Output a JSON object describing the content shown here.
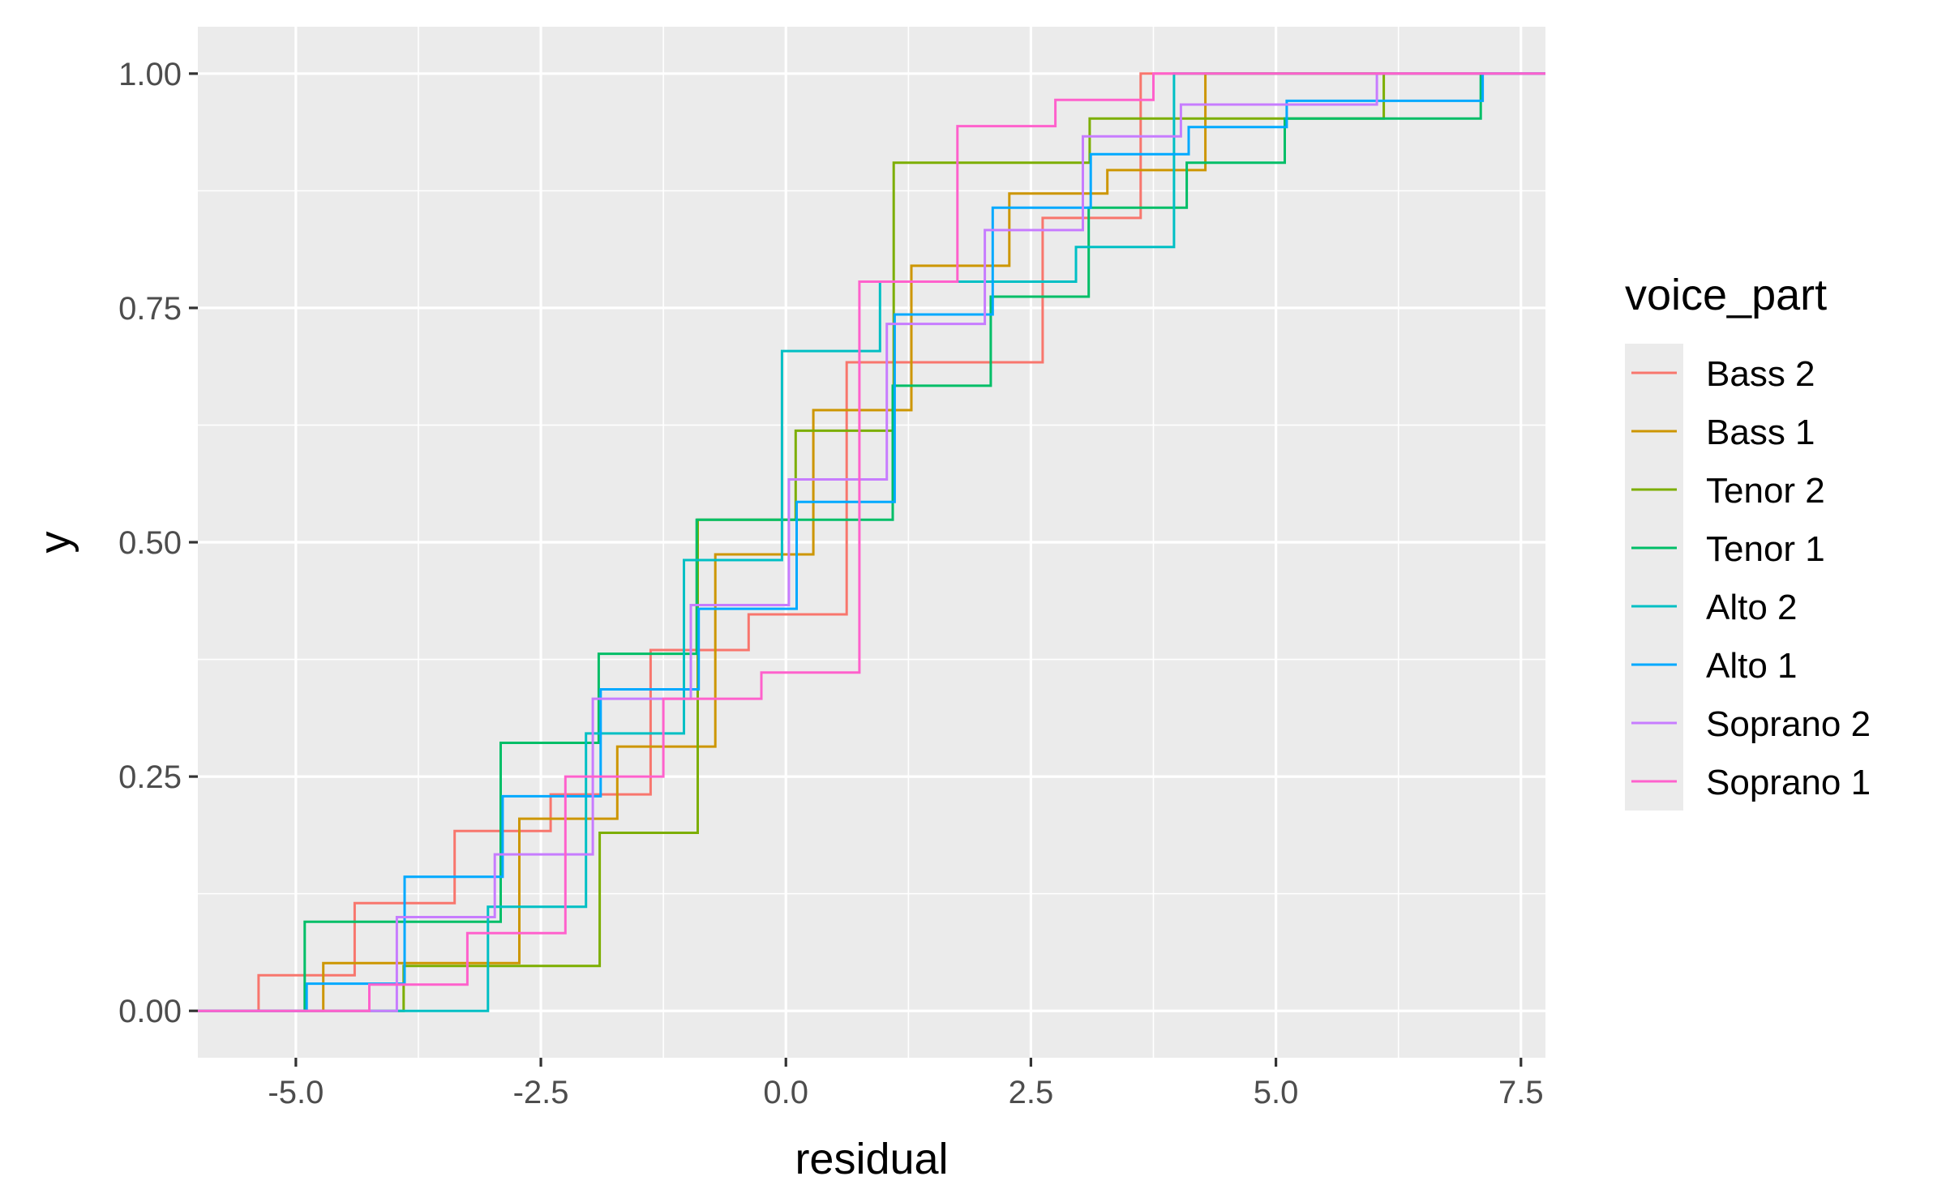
{
  "chart_data": {
    "type": "line",
    "subtype": "step-ecdf",
    "title": "",
    "xlabel": "residual",
    "ylabel": "y",
    "xlim": [
      -6.0,
      7.75
    ],
    "ylim": [
      -0.05,
      1.05
    ],
    "x_ticks": [
      -5.0,
      -2.5,
      0.0,
      2.5,
      5.0,
      7.5
    ],
    "x_tick_labels": [
      "-5.0",
      "-2.5",
      "0.0",
      "2.5",
      "5.0",
      "7.5"
    ],
    "y_ticks": [
      0.0,
      0.25,
      0.5,
      0.75,
      1.0
    ],
    "y_tick_labels": [
      "0.00",
      "0.25",
      "0.50",
      "0.75",
      "1.00"
    ],
    "grid": true,
    "panel_background": "#ebebeb",
    "legend": {
      "title": "voice_part",
      "position": "right"
    },
    "series": [
      {
        "name": "Bass 2",
        "color": "#F8766D",
        "points": [
          [
            -5.38,
            0.0
          ],
          [
            -5.38,
            0.038
          ],
          [
            -4.4,
            0.038
          ],
          [
            -4.4,
            0.115
          ],
          [
            -3.38,
            0.115
          ],
          [
            -3.38,
            0.192
          ],
          [
            -2.4,
            0.192
          ],
          [
            -2.4,
            0.231
          ],
          [
            -1.38,
            0.231
          ],
          [
            -1.38,
            0.385
          ],
          [
            -0.38,
            0.385
          ],
          [
            -0.38,
            0.423
          ],
          [
            0.62,
            0.423
          ],
          [
            0.62,
            0.692
          ],
          [
            2.62,
            0.692
          ],
          [
            2.62,
            0.846
          ],
          [
            3.62,
            0.846
          ],
          [
            3.62,
            1.0
          ]
        ]
      },
      {
        "name": "Bass 1",
        "color": "#CD9600",
        "points": [
          [
            -4.72,
            0.0
          ],
          [
            -4.72,
            0.051
          ],
          [
            -2.72,
            0.051
          ],
          [
            -2.72,
            0.205
          ],
          [
            -1.72,
            0.205
          ],
          [
            -1.72,
            0.282
          ],
          [
            -0.72,
            0.282
          ],
          [
            -0.72,
            0.487
          ],
          [
            0.28,
            0.487
          ],
          [
            0.28,
            0.641
          ],
          [
            1.28,
            0.641
          ],
          [
            1.28,
            0.795
          ],
          [
            2.28,
            0.795
          ],
          [
            2.28,
            0.872
          ],
          [
            3.28,
            0.872
          ],
          [
            3.28,
            0.897
          ],
          [
            4.28,
            0.897
          ],
          [
            4.28,
            1.0
          ]
        ]
      },
      {
        "name": "Tenor 2",
        "color": "#7CAE00",
        "points": [
          [
            -3.9,
            0.0
          ],
          [
            -3.9,
            0.048
          ],
          [
            -1.9,
            0.048
          ],
          [
            -1.9,
            0.19
          ],
          [
            -0.9,
            0.19
          ],
          [
            -0.9,
            0.524
          ],
          [
            0.1,
            0.524
          ],
          [
            0.1,
            0.619
          ],
          [
            1.1,
            0.619
          ],
          [
            1.1,
            0.905
          ],
          [
            3.1,
            0.905
          ],
          [
            3.1,
            0.952
          ],
          [
            6.1,
            0.952
          ],
          [
            6.1,
            1.0
          ]
        ]
      },
      {
        "name": "Tenor 1",
        "color": "#00BE67",
        "points": [
          [
            -4.91,
            0.0
          ],
          [
            -4.91,
            0.095
          ],
          [
            -2.91,
            0.095
          ],
          [
            -2.91,
            0.286
          ],
          [
            -1.91,
            0.286
          ],
          [
            -1.91,
            0.381
          ],
          [
            -0.91,
            0.381
          ],
          [
            -0.91,
            0.524
          ],
          [
            1.09,
            0.524
          ],
          [
            1.09,
            0.667
          ],
          [
            2.09,
            0.667
          ],
          [
            2.09,
            0.762
          ],
          [
            3.09,
            0.762
          ],
          [
            3.09,
            0.857
          ],
          [
            4.09,
            0.857
          ],
          [
            4.09,
            0.905
          ],
          [
            5.09,
            0.905
          ],
          [
            5.09,
            0.952
          ],
          [
            7.09,
            0.952
          ],
          [
            7.09,
            1.0
          ]
        ]
      },
      {
        "name": "Alto 2",
        "color": "#00BFC4",
        "points": [
          [
            -3.04,
            0.0
          ],
          [
            -3.04,
            0.111
          ],
          [
            -2.04,
            0.111
          ],
          [
            -2.04,
            0.296
          ],
          [
            -1.04,
            0.296
          ],
          [
            -1.04,
            0.481
          ],
          [
            -0.04,
            0.481
          ],
          [
            -0.04,
            0.704
          ],
          [
            0.96,
            0.704
          ],
          [
            0.96,
            0.778
          ],
          [
            2.96,
            0.778
          ],
          [
            2.96,
            0.815
          ],
          [
            3.96,
            0.815
          ],
          [
            3.96,
            1.0
          ]
        ]
      },
      {
        "name": "Alto 1",
        "color": "#00A9FF",
        "points": [
          [
            -4.89,
            0.0
          ],
          [
            -4.89,
            0.029
          ],
          [
            -3.89,
            0.029
          ],
          [
            -3.89,
            0.143
          ],
          [
            -2.89,
            0.143
          ],
          [
            -2.89,
            0.229
          ],
          [
            -1.89,
            0.229
          ],
          [
            -1.89,
            0.343
          ],
          [
            -0.89,
            0.343
          ],
          [
            -0.89,
            0.429
          ],
          [
            0.11,
            0.429
          ],
          [
            0.11,
            0.543
          ],
          [
            1.11,
            0.543
          ],
          [
            1.11,
            0.743
          ],
          [
            2.11,
            0.743
          ],
          [
            2.11,
            0.857
          ],
          [
            3.11,
            0.857
          ],
          [
            3.11,
            0.914
          ],
          [
            4.11,
            0.914
          ],
          [
            4.11,
            0.943
          ],
          [
            5.11,
            0.943
          ],
          [
            5.11,
            0.971
          ],
          [
            7.11,
            0.971
          ],
          [
            7.11,
            1.0
          ]
        ]
      },
      {
        "name": "Soprano 2",
        "color": "#C77CFF",
        "points": [
          [
            -3.97,
            0.0
          ],
          [
            -3.97,
            0.1
          ],
          [
            -2.97,
            0.1
          ],
          [
            -2.97,
            0.167
          ],
          [
            -1.97,
            0.167
          ],
          [
            -1.97,
            0.333
          ],
          [
            -0.97,
            0.333
          ],
          [
            -0.97,
            0.433
          ],
          [
            0.03,
            0.433
          ],
          [
            0.03,
            0.567
          ],
          [
            1.03,
            0.567
          ],
          [
            1.03,
            0.733
          ],
          [
            2.03,
            0.733
          ],
          [
            2.03,
            0.833
          ],
          [
            3.03,
            0.833
          ],
          [
            3.03,
            0.933
          ],
          [
            4.03,
            0.933
          ],
          [
            4.03,
            0.967
          ],
          [
            6.03,
            0.967
          ],
          [
            6.03,
            1.0
          ]
        ]
      },
      {
        "name": "Soprano 1",
        "color": "#FF61CC",
        "points": [
          [
            -4.25,
            0.0
          ],
          [
            -4.25,
            0.028
          ],
          [
            -3.25,
            0.028
          ],
          [
            -3.25,
            0.083
          ],
          [
            -2.25,
            0.083
          ],
          [
            -2.25,
            0.25
          ],
          [
            -1.25,
            0.25
          ],
          [
            -1.25,
            0.333
          ],
          [
            -0.25,
            0.333
          ],
          [
            -0.25,
            0.361
          ],
          [
            0.75,
            0.361
          ],
          [
            0.75,
            0.778
          ],
          [
            1.75,
            0.778
          ],
          [
            1.75,
            0.944
          ],
          [
            2.75,
            0.944
          ],
          [
            2.75,
            0.972
          ],
          [
            3.75,
            0.972
          ],
          [
            3.75,
            1.0
          ]
        ]
      }
    ]
  }
}
